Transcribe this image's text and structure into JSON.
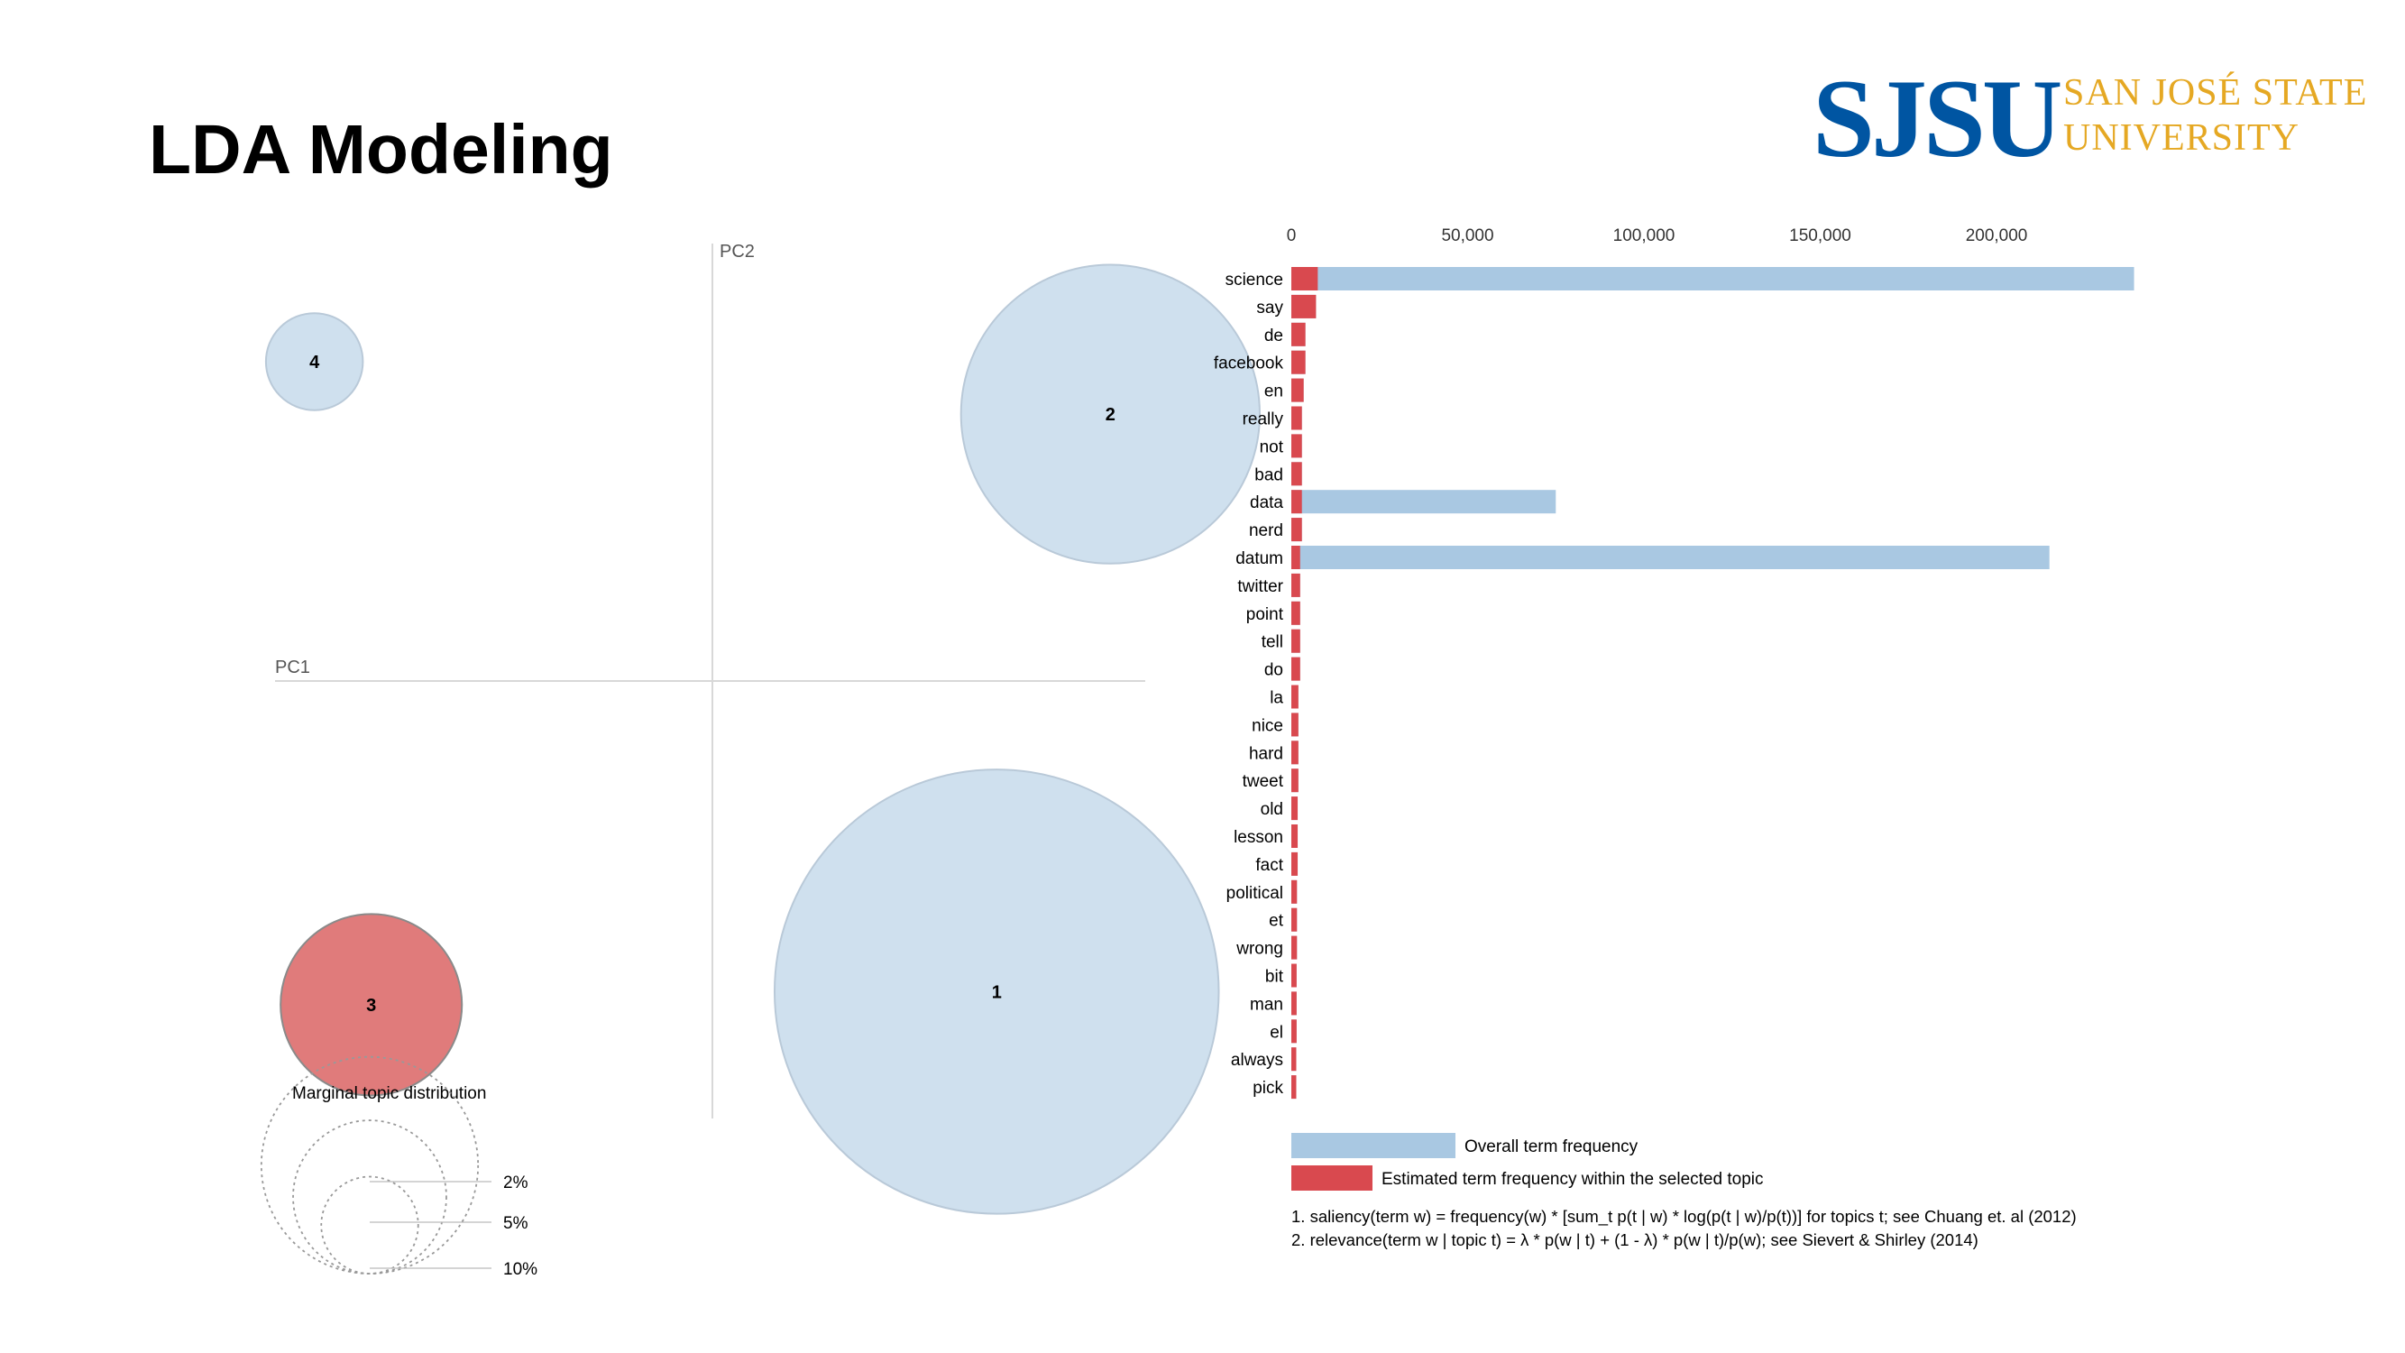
{
  "slide": {
    "title": "LDA Modeling"
  },
  "logo": {
    "mark": "SJSU",
    "line1": "SAN JOSÉ STATE",
    "line2": "UNIVERSITY",
    "color_mark": "#0055a2",
    "color_text": "#e5a823"
  },
  "chart_data": [
    {
      "type": "scatter",
      "name": "intertopic-distance-map",
      "xlabel": "PC1",
      "ylabel": "PC2",
      "xlim": [
        -1,
        1
      ],
      "ylim": [
        -1,
        1
      ],
      "points": [
        {
          "label": "1",
          "x": 0.65,
          "y": -0.71,
          "share": 0.42,
          "selected": false
        },
        {
          "label": "2",
          "x": 0.91,
          "y": 0.61,
          "share": 0.19,
          "selected": false
        },
        {
          "label": "3",
          "x": -0.78,
          "y": -0.74,
          "share": 0.07,
          "selected": true
        },
        {
          "label": "4",
          "x": -0.91,
          "y": 0.73,
          "share": 0.02,
          "selected": false
        }
      ],
      "colors": {
        "topic": "#cfe0ee",
        "selected": "#e07b7b"
      },
      "size_legend": {
        "title": "Marginal topic distribution",
        "items": [
          "2%",
          "5%",
          "10%"
        ],
        "shares": [
          0.02,
          0.05,
          0.1
        ]
      }
    },
    {
      "type": "bar",
      "name": "term-frequency-bars",
      "orientation": "horizontal",
      "xlim": [
        0,
        245000
      ],
      "ticks": [
        0,
        50000,
        100000,
        150000,
        200000
      ],
      "tick_labels": [
        "0",
        "50,000",
        "100,000",
        "150,000",
        "200,000"
      ],
      "categories": [
        "science",
        "say",
        "de",
        "facebook",
        "en",
        "really",
        "not",
        "bad",
        "data",
        "nerd",
        "datum",
        "twitter",
        "point",
        "tell",
        "do",
        "la",
        "nice",
        "hard",
        "tweet",
        "old",
        "lesson",
        "fact",
        "political",
        "et",
        "wrong",
        "bit",
        "man",
        "el",
        "always",
        "pick"
      ],
      "series": [
        {
          "name": "Overall term frequency",
          "color": "#a9c8e2",
          "values": [
            239000,
            7000,
            4000,
            4000,
            3500,
            3000,
            3000,
            3000,
            75000,
            3000,
            215000,
            2500,
            2500,
            2500,
            2500,
            2000,
            2000,
            2000,
            2000,
            1800,
            1800,
            1800,
            1600,
            1600,
            1600,
            1500,
            1500,
            1500,
            1400,
            1400
          ]
        },
        {
          "name": "Estimated term frequency within the selected topic",
          "color": "#d9494f",
          "values": [
            7500,
            7000,
            4000,
            4000,
            3500,
            3000,
            3000,
            3000,
            3000,
            3000,
            2500,
            2500,
            2500,
            2500,
            2500,
            2000,
            2000,
            2000,
            2000,
            1800,
            1800,
            1800,
            1600,
            1600,
            1600,
            1500,
            1500,
            1500,
            1400,
            1400
          ]
        }
      ],
      "legend_placement": "bottom-left"
    }
  ],
  "notes": [
    "1. saliency(term w) = frequency(w) * [sum_t p(t | w) * log(p(t | w)/p(t))] for topics t; see Chuang et. al (2012)",
    "2. relevance(term w | topic t) = λ * p(w | t) + (1 - λ) * p(w | t)/p(w); see Sievert & Shirley (2014)"
  ]
}
